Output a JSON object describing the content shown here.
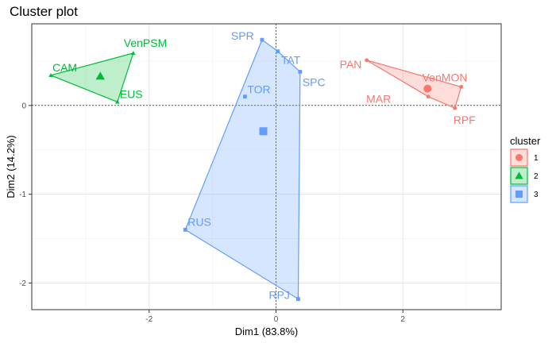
{
  "chart_data": {
    "type": "scatter",
    "title": "Cluster plot",
    "xlabel": "Dim1 (83.8%)",
    "ylabel": "Dim2 (14.2%)",
    "xlim": [
      -3.85,
      3.55
    ],
    "ylim": [
      -2.3,
      0.92
    ],
    "xticks": [
      -2,
      0,
      2
    ],
    "yticks": [
      -2,
      -1,
      0
    ],
    "xtick_labels": [
      "-2",
      "0",
      "2"
    ],
    "ytick_labels": [
      "-2",
      "-1",
      "0"
    ],
    "grid": true,
    "legend": {
      "title": "cluster",
      "position": "right"
    },
    "clusters": [
      {
        "name": "1",
        "color": "#F8766D",
        "shape": "circle",
        "points": [
          {
            "label": "PAN",
            "x": 1.43,
            "y": 0.51
          },
          {
            "label": "VenMON",
            "x": 2.92,
            "y": 0.21
          },
          {
            "label": "MAR",
            "x": 2.4,
            "y": 0.1
          },
          {
            "label": "RPF",
            "x": 2.82,
            "y": -0.03
          }
        ],
        "hull": [
          "PAN",
          "VenMON",
          "RPF",
          "MAR"
        ],
        "center": {
          "x": 2.39,
          "y": 0.19
        }
      },
      {
        "name": "2",
        "color": "#00BA38",
        "shape": "triangle",
        "points": [
          {
            "label": "CAM",
            "x": -3.55,
            "y": 0.34
          },
          {
            "label": "VenPSM",
            "x": -2.25,
            "y": 0.59
          },
          {
            "label": "EUS",
            "x": -2.5,
            "y": 0.04
          }
        ],
        "hull": [
          "CAM",
          "VenPSM",
          "EUS"
        ],
        "center": {
          "x": -2.77,
          "y": 0.33
        }
      },
      {
        "name": "3",
        "color": "#619CFF",
        "shape": "square",
        "points": [
          {
            "label": "SPR",
            "x": -0.22,
            "y": 0.74
          },
          {
            "label": "TAT",
            "x": 0.03,
            "y": 0.61
          },
          {
            "label": "SPC",
            "x": 0.38,
            "y": 0.38
          },
          {
            "label": "TOR",
            "x": -0.49,
            "y": 0.1
          },
          {
            "label": "RUS",
            "x": -1.43,
            "y": -1.4
          },
          {
            "label": "RPJ",
            "x": 0.35,
            "y": -2.18
          }
        ],
        "hull": [
          "SPR",
          "TAT",
          "SPC",
          "RPJ",
          "RUS"
        ],
        "center": {
          "x": -0.2,
          "y": -0.29
        }
      }
    ]
  }
}
